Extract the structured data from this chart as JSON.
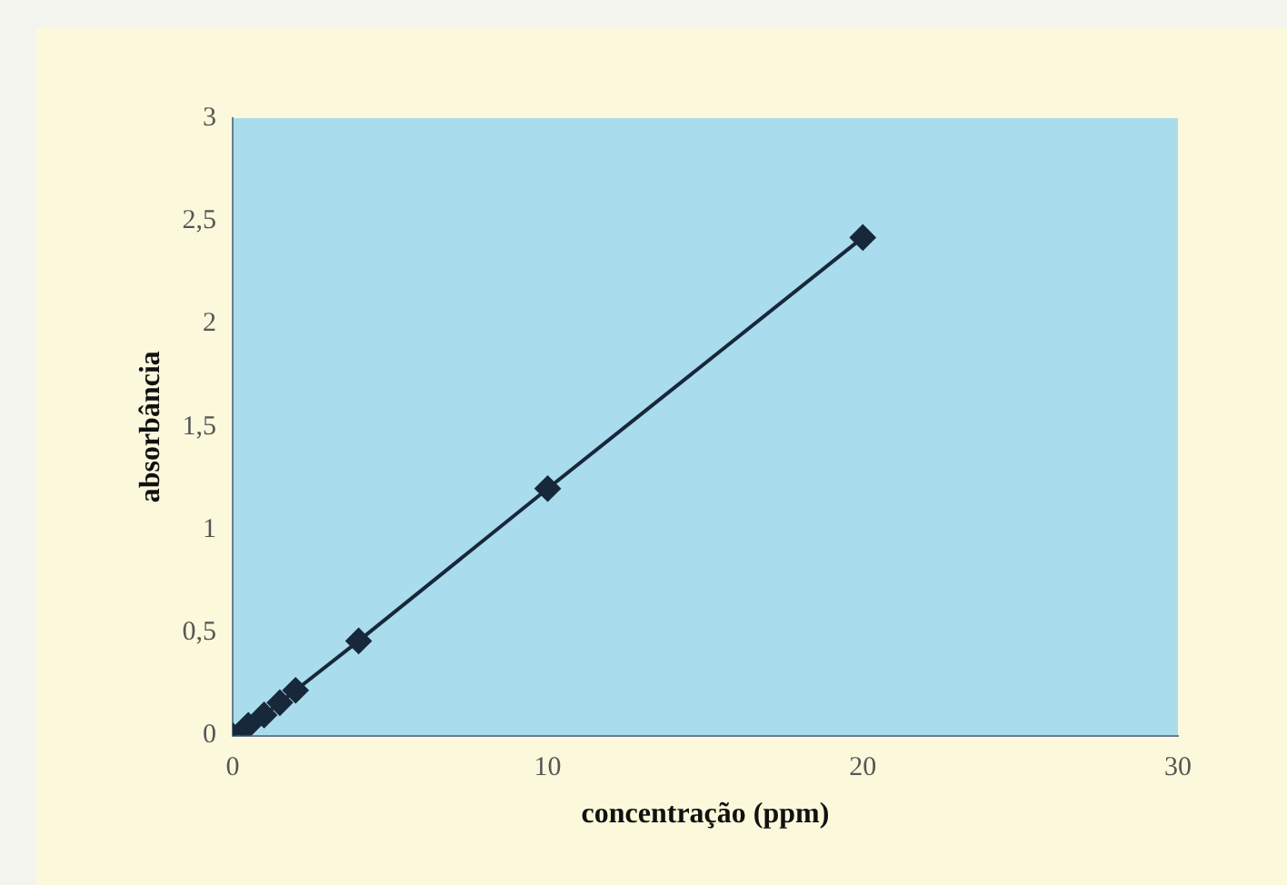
{
  "chart_data": {
    "type": "line",
    "xlabel": "concentração (ppm)",
    "ylabel": "absorbância",
    "x": [
      0,
      0.5,
      1,
      1.5,
      2,
      4,
      10,
      20
    ],
    "series": [
      {
        "color": "#17283a",
        "values": [
          0,
          0.05,
          0.1,
          0.16,
          0.22,
          0.46,
          1.2,
          2.42
        ]
      }
    ],
    "xlim": [
      0,
      30
    ],
    "xticks": [
      0,
      10,
      20,
      30
    ],
    "ylim": [
      0,
      3
    ],
    "yticks": [
      0,
      {
        "value": 0.5,
        "label": "0,5"
      },
      1,
      {
        "value": 1.5,
        "label": "1,5"
      },
      2,
      {
        "value": 2.5,
        "label": "2,5"
      },
      3
    ],
    "grid": false,
    "legend": false,
    "marker": "diamond",
    "line_style": "solid"
  }
}
